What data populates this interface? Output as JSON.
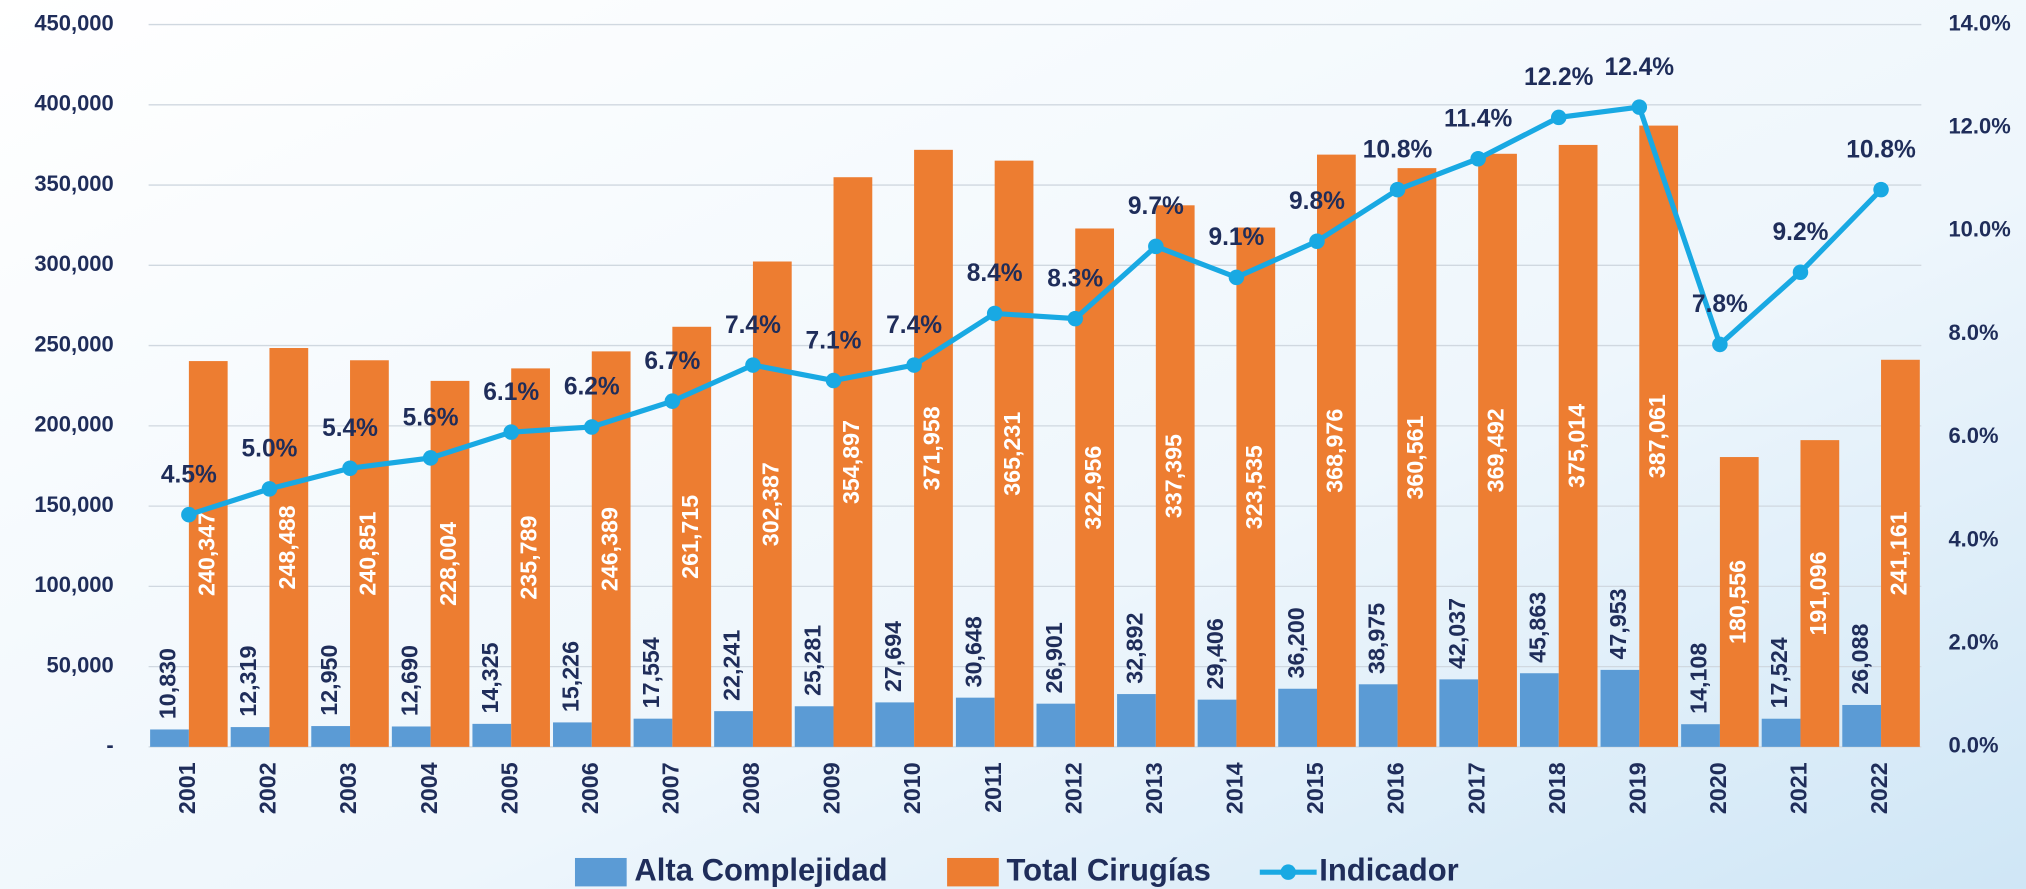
{
  "chart_data": {
    "type": "bar",
    "categories": [
      "2001",
      "2002",
      "2003",
      "2004",
      "2005",
      "2006",
      "2007",
      "2008",
      "2009",
      "2010",
      "2011",
      "2012",
      "2013",
      "2014",
      "2015",
      "2016",
      "2017",
      "2018",
      "2019",
      "2020",
      "2021",
      "2022"
    ],
    "series": [
      {
        "name": "Alta Complejidad",
        "color": "#5b9bd5",
        "values": [
          10830,
          12319,
          12950,
          12690,
          14325,
          15226,
          17554,
          22241,
          25281,
          27694,
          30648,
          26901,
          32892,
          29406,
          36200,
          38975,
          42037,
          45863,
          47953,
          14108,
          17524,
          26088
        ],
        "value_labels": [
          "10,830",
          "12,319",
          "12,950",
          "12,690",
          "14,325",
          "15,226",
          "17,554",
          "22,241",
          "25,281",
          "27,694",
          "30,648",
          "26,901",
          "32,892",
          "29,406",
          "36,200",
          "38,975",
          "42,037",
          "45,863",
          "47,953",
          "14,108",
          "17,524",
          "26,088"
        ]
      },
      {
        "name": "Total Cirugías",
        "color": "#ed7d31",
        "values": [
          240347,
          248488,
          240851,
          228004,
          235789,
          246389,
          261715,
          302387,
          354897,
          371958,
          365231,
          322956,
          337395,
          323535,
          368976,
          360561,
          369492,
          375014,
          387061,
          180556,
          191096,
          241161
        ],
        "value_labels": [
          "240,347",
          "248,488",
          "240,851",
          "228,004",
          "235,789",
          "246,389",
          "261,715",
          "302,387",
          "354,897",
          "371,958",
          "365,231",
          "322,956",
          "337,395",
          "323,535",
          "368,976",
          "360,561",
          "369,492",
          "375,014",
          "387,061",
          "180,556",
          "191,096",
          "241,161"
        ]
      },
      {
        "name": "Indicador",
        "color": "#19a9e3",
        "type": "line",
        "axis": "y2",
        "values": [
          4.5,
          5.0,
          5.4,
          5.6,
          6.1,
          6.2,
          6.7,
          7.4,
          7.1,
          7.4,
          8.4,
          8.3,
          9.7,
          9.1,
          9.8,
          10.8,
          11.4,
          12.2,
          12.4,
          7.8,
          9.2,
          10.8
        ],
        "value_labels": [
          "4.5%",
          "5.0%",
          "5.4%",
          "5.6%",
          "6.1%",
          "6.2%",
          "6.7%",
          "7.4%",
          "7.1%",
          "7.4%",
          "8.4%",
          "8.3%",
          "9.7%",
          "9.1%",
          "9.8%",
          "10.8%",
          "11.4%",
          "12.2%",
          "12.4%",
          "7.8%",
          "9.2%",
          "10.8%"
        ]
      }
    ],
    "ylim": [
      0,
      450000
    ],
    "yticks": [
      {
        "value": 0,
        "label": "-"
      },
      {
        "value": 50000,
        "label": "50,000"
      },
      {
        "value": 100000,
        "label": "100,000"
      },
      {
        "value": 150000,
        "label": "150,000"
      },
      {
        "value": 200000,
        "label": "200,000"
      },
      {
        "value": 250000,
        "label": "250,000"
      },
      {
        "value": 300000,
        "label": "300,000"
      },
      {
        "value": 350000,
        "label": "350,000"
      },
      {
        "value": 400000,
        "label": "400,000"
      },
      {
        "value": 450000,
        "label": "450,000"
      }
    ],
    "y2lim": [
      0,
      14
    ],
    "y2ticks": [
      {
        "value": 0,
        "label": "0.0%"
      },
      {
        "value": 2,
        "label": "2.0%"
      },
      {
        "value": 4,
        "label": "4.0%"
      },
      {
        "value": 6,
        "label": "6.0%"
      },
      {
        "value": 8,
        "label": "8.0%"
      },
      {
        "value": 10,
        "label": "10.0%"
      },
      {
        "value": 12,
        "label": "12.0%"
      },
      {
        "value": 14,
        "label": "14.0%"
      }
    ],
    "grid": true,
    "legend": "bottom"
  }
}
